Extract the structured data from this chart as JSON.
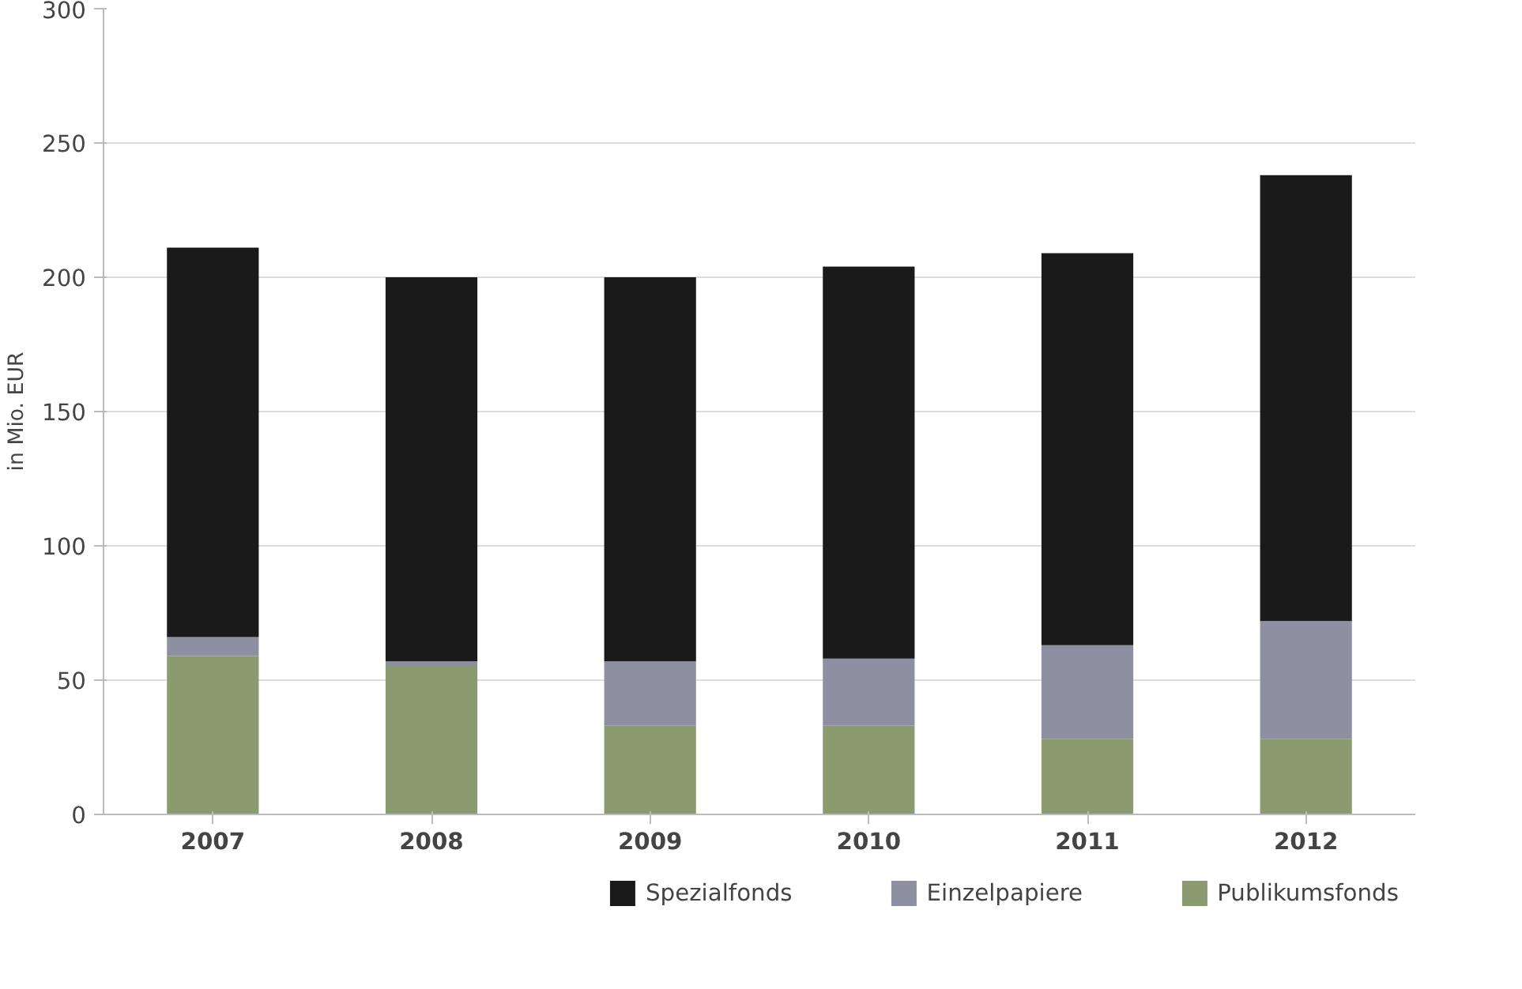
{
  "chart_data": {
    "type": "bar",
    "stacked": true,
    "ylabel": "in Mio. EUR",
    "categories": [
      "2007",
      "2008",
      "2009",
      "2010",
      "2011",
      "2012"
    ],
    "series": [
      {
        "name": "Publikumsfonds",
        "color": "#8c9a70",
        "values": [
          59,
          55,
          33,
          33,
          28,
          28
        ]
      },
      {
        "name": "Einzelpapiere",
        "color": "#8e8fa0",
        "values": [
          7,
          2,
          24,
          25,
          35,
          44
        ]
      },
      {
        "name": "Spezialfonds",
        "color": "#1a1a1a",
        "values": [
          145,
          143,
          143,
          146,
          146,
          166
        ]
      }
    ],
    "ylim": [
      0,
      300
    ],
    "yticks": [
      0,
      50,
      100,
      150,
      200,
      250,
      300
    ],
    "grid": "y",
    "legend": "bottom"
  }
}
